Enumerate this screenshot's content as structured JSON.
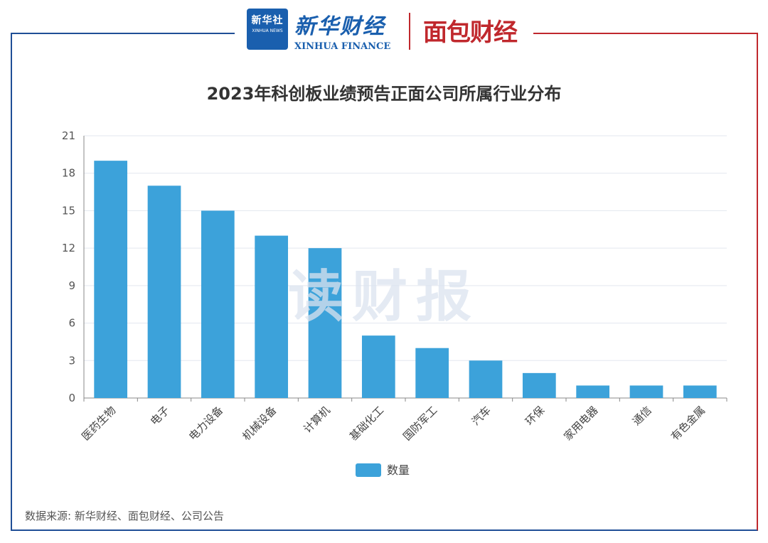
{
  "header": {
    "xinhua_badge_cn": "新华社",
    "xinhua_badge_en": "XINHUA NEWS",
    "xinhua_brand_cn": "新华财经",
    "xinhua_brand_en": "XINHUA FINANCE",
    "mianbao_brand": "面包财经"
  },
  "watermark": "读财报",
  "source_note": "数据来源: 新华财经、面包财经、公司公告",
  "colors": {
    "bar": "#3ca2da",
    "frame_blue": "#1f4e96",
    "frame_red": "#c0282d"
  },
  "chart_data": {
    "type": "bar",
    "title": "2023年科创板业绩预告正面公司所属行业分布",
    "categories": [
      "医药生物",
      "电子",
      "电力设备",
      "机械设备",
      "计算机",
      "基础化工",
      "国防军工",
      "汽车",
      "环保",
      "家用电器",
      "通信",
      "有色金属"
    ],
    "series": [
      {
        "name": "数量",
        "values": [
          19,
          17,
          15,
          13,
          12,
          5,
          4,
          3,
          2,
          1,
          1,
          1
        ]
      }
    ],
    "yticks": [
      0,
      3,
      6,
      9,
      12,
      15,
      18,
      21
    ],
    "ylim": [
      0,
      21
    ],
    "xlabel": "",
    "ylabel": "",
    "legend": "bottom-center",
    "grid": true
  }
}
